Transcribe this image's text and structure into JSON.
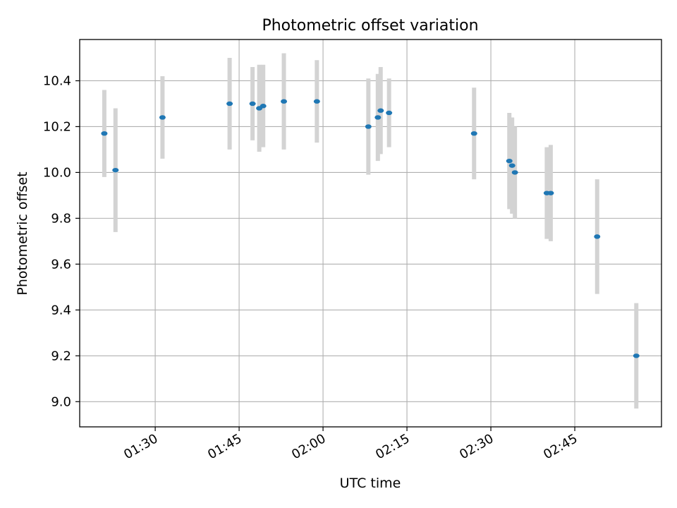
{
  "chart_data": {
    "type": "scatter",
    "title": "Photometric offset variation",
    "xlabel": "UTC time",
    "ylabel": "Photometric offset",
    "x_ticks": [
      "01:30",
      "01:45",
      "02:00",
      "02:15",
      "02:30",
      "02:45"
    ],
    "y_ticks": [
      "9.0",
      "9.2",
      "9.4",
      "9.6",
      "9.8",
      "10.0",
      "10.2",
      "10.4"
    ],
    "xlim": [
      "01:16.5",
      "03:00.5"
    ],
    "ylim": [
      8.89,
      10.58
    ],
    "grid": true,
    "marker_color": "#1f77b4",
    "errorbar_color": "#d3d3d3",
    "series": [
      {
        "points": [
          {
            "x": "01:20.9",
            "y": 10.17,
            "yerr": 0.19
          },
          {
            "x": "01:22.9",
            "y": 10.01,
            "yerr": 0.27
          },
          {
            "x": "01:31.3",
            "y": 10.24,
            "yerr": 0.18
          },
          {
            "x": "01:43.3",
            "y": 10.3,
            "yerr": 0.2
          },
          {
            "x": "01:47.4",
            "y": 10.3,
            "yerr": 0.16
          },
          {
            "x": "01:48.6",
            "y": 10.28,
            "yerr": 0.19
          },
          {
            "x": "01:49.3",
            "y": 10.29,
            "yerr": 0.18
          },
          {
            "x": "01:53.0",
            "y": 10.31,
            "yerr": 0.21
          },
          {
            "x": "01:58.9",
            "y": 10.31,
            "yerr": 0.18
          },
          {
            "x": "02:08.1",
            "y": 10.2,
            "yerr": 0.21
          },
          {
            "x": "02:09.8",
            "y": 10.24,
            "yerr": 0.19
          },
          {
            "x": "02:10.3",
            "y": 10.27,
            "yerr": 0.19
          },
          {
            "x": "02:11.8",
            "y": 10.26,
            "yerr": 0.15
          },
          {
            "x": "02:27.0",
            "y": 10.17,
            "yerr": 0.2
          },
          {
            "x": "02:33.3",
            "y": 10.05,
            "yerr": 0.21
          },
          {
            "x": "02:33.8",
            "y": 10.03,
            "yerr": 0.21
          },
          {
            "x": "02:34.3",
            "y": 10.0,
            "yerr": 0.2
          },
          {
            "x": "02:40.0",
            "y": 9.91,
            "yerr": 0.2
          },
          {
            "x": "02:40.7",
            "y": 9.91,
            "yerr": 0.21
          },
          {
            "x": "02:49.0",
            "y": 9.72,
            "yerr": 0.25
          },
          {
            "x": "02:56.0",
            "y": 9.2,
            "yerr": 0.23
          }
        ]
      }
    ]
  }
}
